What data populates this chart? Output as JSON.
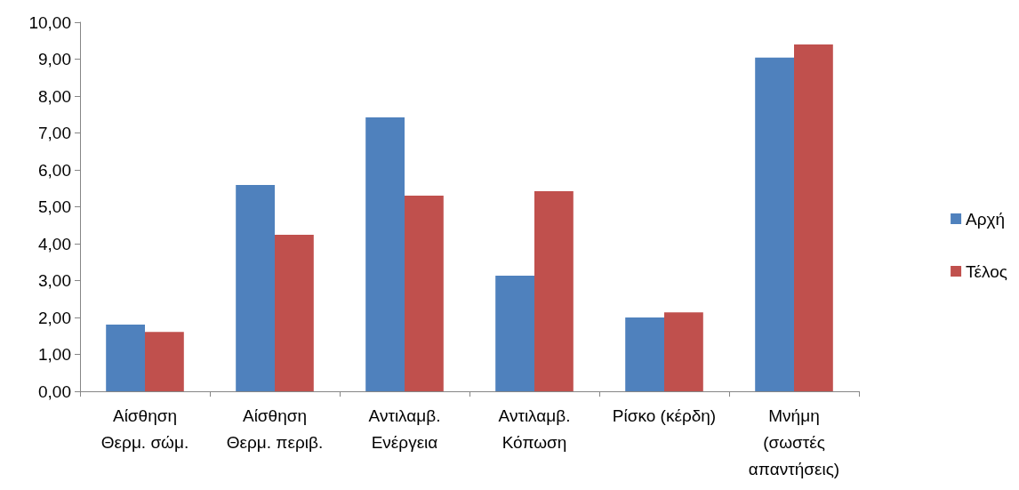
{
  "chart_data": {
    "type": "bar",
    "categories": [
      "Αίσθηση\nΘερμ. σώμ.",
      "Αίσθηση\nΘερμ. περιβ.",
      "Αντιλαμβ.\nΕνέργεια",
      "Αντιλαμβ.\nΚόπωση",
      "Ρίσκο (κέρδη)",
      "Μνήμη\n(σωστές\nαπαντήσεις)"
    ],
    "series": [
      {
        "name": "Αρχή",
        "color": "#4f81bd",
        "values": [
          1.81,
          5.59,
          7.42,
          3.13,
          2.0,
          9.04
        ]
      },
      {
        "name": "Τέλος",
        "color": "#c0504d",
        "values": [
          1.61,
          4.24,
          5.3,
          5.42,
          2.14,
          9.4
        ]
      }
    ],
    "ylim": [
      0,
      10
    ],
    "yticks": [
      {
        "value": 0,
        "label": "0,00"
      },
      {
        "value": 1,
        "label": "1,00"
      },
      {
        "value": 2,
        "label": "2,00"
      },
      {
        "value": 3,
        "label": "3,00"
      },
      {
        "value": 4,
        "label": "4,00"
      },
      {
        "value": 5,
        "label": "5,00"
      },
      {
        "value": 6,
        "label": "6,00"
      },
      {
        "value": 7,
        "label": "7,00"
      },
      {
        "value": 8,
        "label": "8,00"
      },
      {
        "value": 9,
        "label": "9,00"
      },
      {
        "value": 10,
        "label": "10,00"
      }
    ],
    "grid": false,
    "legend": "right"
  }
}
